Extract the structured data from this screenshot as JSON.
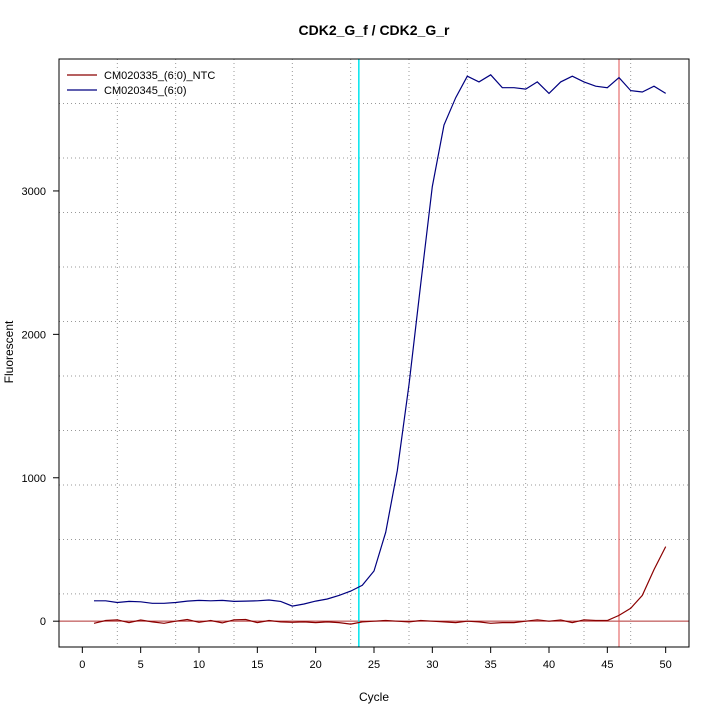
{
  "chart_data": {
    "type": "line",
    "title": "CDK2_G_f / CDK2_G_r",
    "xlabel": "Cycle",
    "ylabel": "Fluorescent",
    "xlim": [
      -2,
      52
    ],
    "ylim": [
      -180,
      3920
    ],
    "x_ticks": [
      0,
      5,
      10,
      15,
      20,
      25,
      30,
      35,
      40,
      45,
      50
    ],
    "y_ticks": [
      0,
      1000,
      2000,
      3000
    ],
    "x_grid": [
      3,
      8,
      13,
      18,
      23,
      28,
      33,
      38,
      43,
      47
    ],
    "y_grid": [
      190,
      570,
      950,
      1330,
      1710,
      2090,
      2470,
      2850,
      3230,
      3610
    ],
    "grid": true,
    "legend_position": "top-left",
    "threshold_line": {
      "value": 0,
      "color": "#b03030"
    },
    "markers": [
      {
        "cycle": 23.7,
        "color": "#00e5ee"
      },
      {
        "cycle": 46,
        "color": "#e05050"
      }
    ],
    "series": [
      {
        "name": "CM020335_(6:0)_NTC",
        "color": "#8b0000",
        "x": [
          1,
          2,
          3,
          4,
          5,
          6,
          7,
          8,
          9,
          10,
          11,
          12,
          13,
          14,
          15,
          16,
          17,
          18,
          19,
          20,
          21,
          22,
          23,
          24,
          25,
          26,
          27,
          28,
          29,
          30,
          31,
          32,
          33,
          34,
          35,
          36,
          37,
          38,
          39,
          40,
          41,
          42,
          43,
          44,
          45,
          46,
          47,
          48,
          49,
          50
        ],
        "values": [
          -15,
          5,
          10,
          -10,
          8,
          -5,
          -15,
          0,
          12,
          -8,
          5,
          -12,
          10,
          12,
          -10,
          5,
          -5,
          -8,
          -5,
          -10,
          -5,
          -10,
          -20,
          -5,
          0,
          5,
          0,
          -5,
          5,
          0,
          -5,
          -10,
          0,
          -5,
          -15,
          -10,
          -10,
          0,
          10,
          0,
          8,
          -10,
          10,
          5,
          5,
          40,
          90,
          180,
          360,
          520
        ]
      },
      {
        "name": "CM020345_(6:0)",
        "color": "#000080",
        "x": [
          1,
          2,
          3,
          4,
          5,
          6,
          7,
          8,
          9,
          10,
          11,
          12,
          13,
          14,
          15,
          16,
          17,
          18,
          19,
          20,
          21,
          22,
          23,
          24,
          25,
          26,
          27,
          28,
          29,
          30,
          31,
          32,
          33,
          34,
          35,
          36,
          37,
          38,
          39,
          40,
          41,
          42,
          43,
          44,
          45,
          46,
          47,
          48,
          49,
          50
        ],
        "values": [
          142,
          142,
          130,
          138,
          135,
          125,
          125,
          130,
          140,
          145,
          142,
          145,
          138,
          140,
          142,
          148,
          138,
          105,
          120,
          140,
          155,
          180,
          210,
          250,
          350,
          620,
          1050,
          1650,
          2350,
          3030,
          3460,
          3650,
          3800,
          3760,
          3810,
          3720,
          3720,
          3710,
          3760,
          3680,
          3760,
          3800,
          3760,
          3730,
          3720,
          3790,
          3700,
          3690,
          3730,
          3680
        ]
      }
    ]
  }
}
